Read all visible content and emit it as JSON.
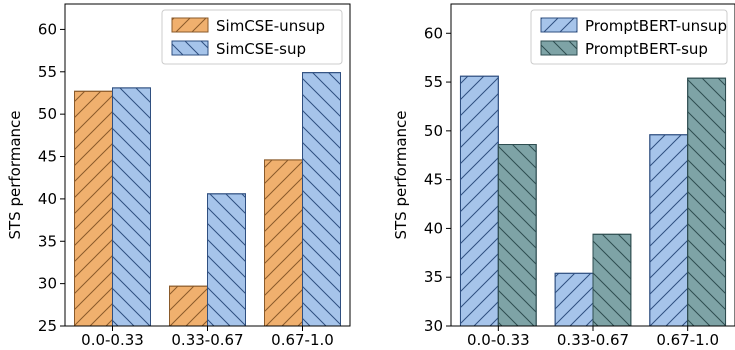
{
  "chart_data": [
    {
      "type": "bar",
      "categories": [
        "0.0-0.33",
        "0.33-0.67",
        "0.67-1.0"
      ],
      "series": [
        {
          "name": "SimCSE-unsup",
          "values": [
            52.7,
            29.7,
            44.6
          ],
          "color": "#f0b06e",
          "edge": "#8a5a2a",
          "hatch": "/"
        },
        {
          "name": "SimCSE-sup",
          "values": [
            53.1,
            40.6,
            54.9
          ],
          "color": "#a6c4ea",
          "edge": "#2f4f80",
          "hatch": "\\"
        }
      ],
      "ylabel": "STS performance",
      "ylim": [
        25,
        63
      ],
      "yticks": [
        25,
        30,
        35,
        40,
        45,
        50,
        55,
        60
      ],
      "legend": "top-right",
      "grid": false
    },
    {
      "type": "bar",
      "categories": [
        "0.0-0.33",
        "0.33-0.67",
        "0.67-1.0"
      ],
      "series": [
        {
          "name": "PromptBERT-unsup",
          "values": [
            55.6,
            35.4,
            49.6
          ],
          "color": "#a6c4ea",
          "edge": "#2f4f80",
          "hatch": "/"
        },
        {
          "name": "PromptBERT-sup",
          "values": [
            48.6,
            39.4,
            55.4
          ],
          "color": "#7ea3a6",
          "edge": "#2e4d50",
          "hatch": "\\"
        }
      ],
      "ylabel": "STS performance",
      "ylim": [
        30,
        63
      ],
      "yticks": [
        30,
        35,
        40,
        45,
        50,
        55,
        60
      ],
      "legend": "top-right",
      "grid": false
    }
  ]
}
